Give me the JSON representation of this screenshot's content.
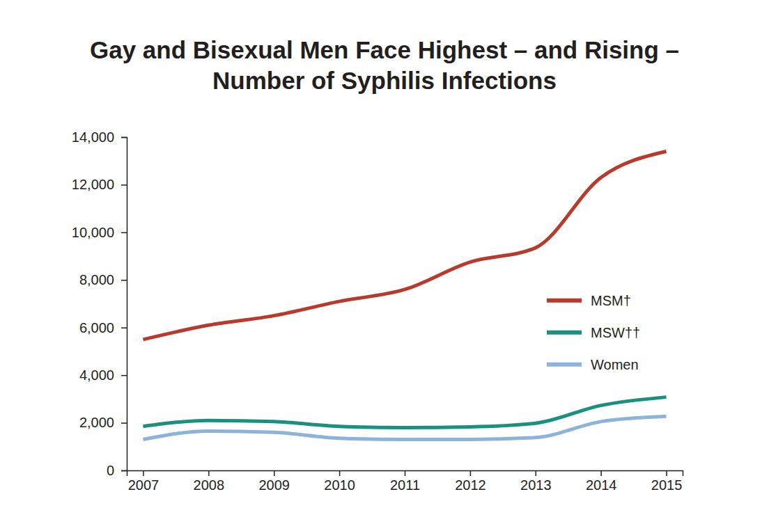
{
  "chart_data": {
    "type": "line",
    "title": [
      "Gay and Bisexual Men Face Highest – and Rising –",
      "Number of Syphilis Infections"
    ],
    "categories": [
      "2007",
      "2008",
      "2009",
      "2010",
      "2011",
      "2012",
      "2013",
      "2014",
      "2015"
    ],
    "series": [
      {
        "name": "MSM†",
        "color": "#b83a2c",
        "values": [
          5500,
          6100,
          6500,
          7100,
          7600,
          8750,
          9350,
          12300,
          13400
        ]
      },
      {
        "name": "MSW††",
        "color": "#1a9080",
        "values": [
          1850,
          2100,
          2050,
          1850,
          1800,
          1830,
          1980,
          2730,
          3080
        ]
      },
      {
        "name": "Women",
        "color": "#8db3dc",
        "values": [
          1300,
          1650,
          1600,
          1350,
          1300,
          1300,
          1380,
          2050,
          2270
        ]
      }
    ],
    "ylim": [
      0,
      14000
    ],
    "yticks": [
      0,
      {
        "value": 2000,
        "label": "2,000"
      },
      {
        "value": 4000,
        "label": "4,000"
      },
      {
        "value": 6000,
        "label": "6,000"
      },
      {
        "value": 8000,
        "label": "8,000"
      },
      {
        "value": 10000,
        "label": "10,000"
      },
      {
        "value": 12000,
        "label": "12,000"
      },
      {
        "value": 14000,
        "label": "14,000"
      }
    ],
    "grid": false,
    "legend": "right"
  }
}
